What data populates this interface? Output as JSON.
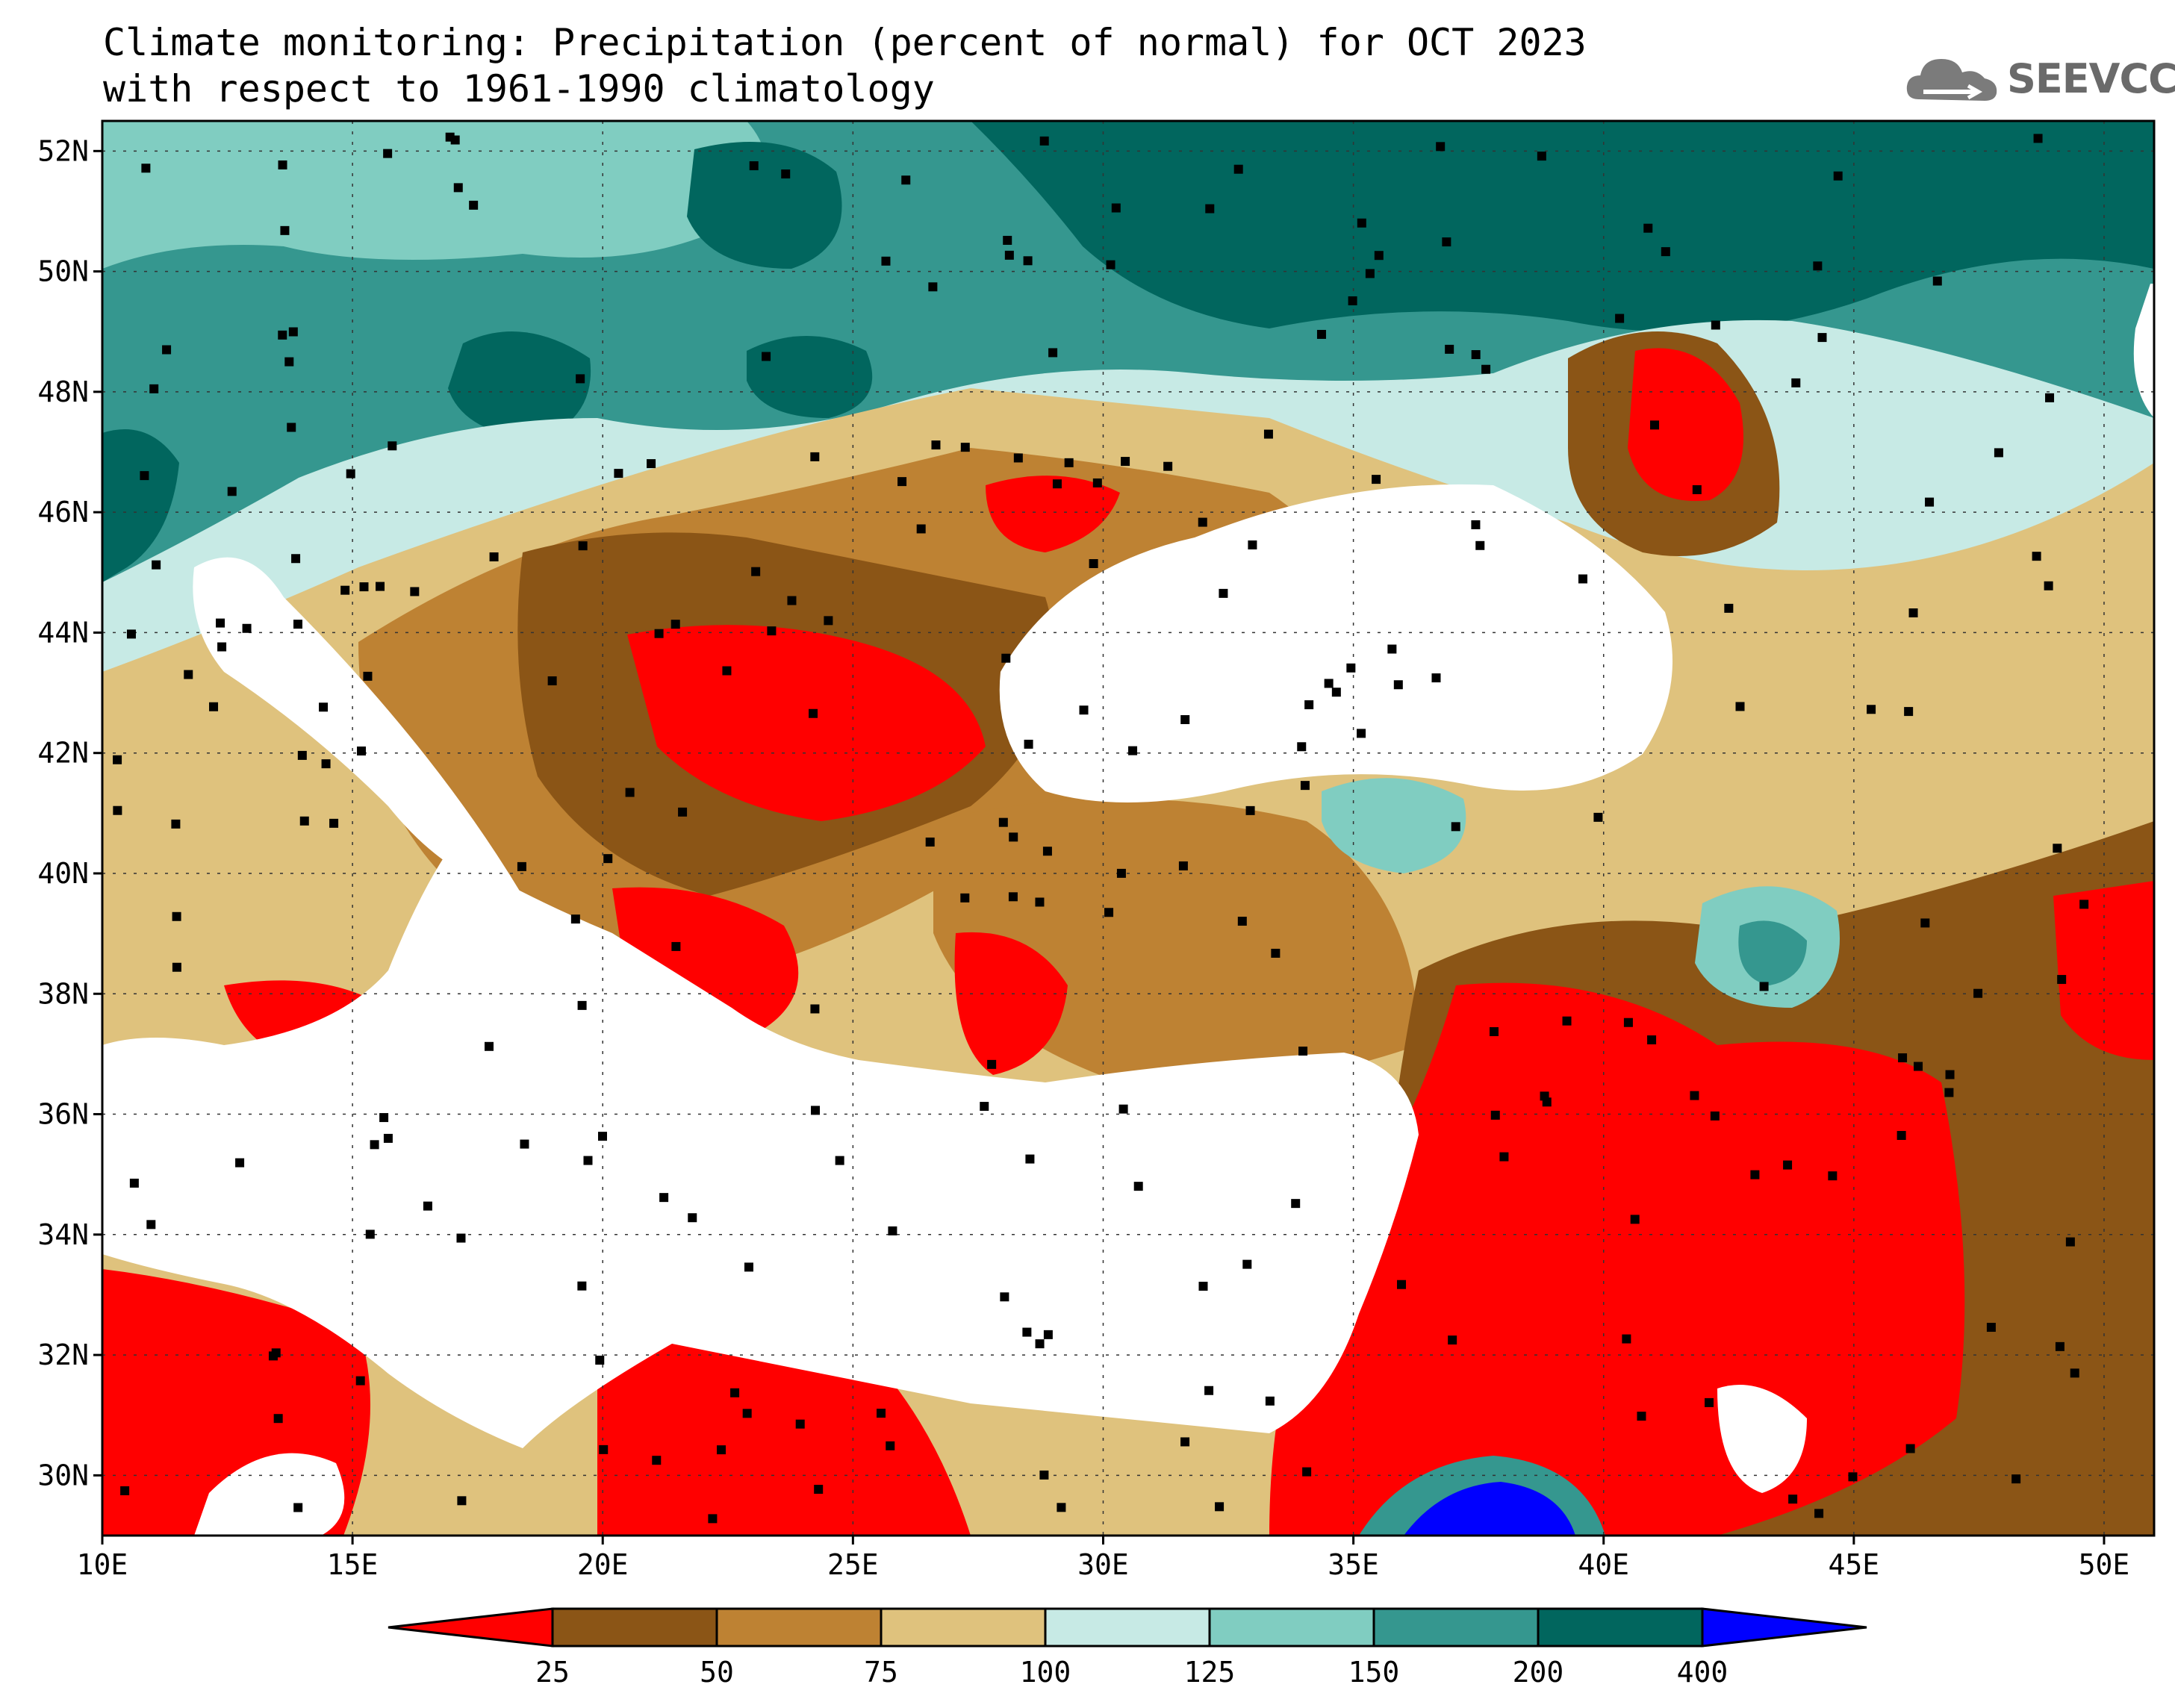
{
  "title": {
    "line1": "Climate monitoring: Precipitation (percent of normal) for OCT 2023",
    "line2": "with respect to 1961-1990 climatology"
  },
  "logo": {
    "icon": "cloud-icon",
    "text": "SEEVCCC"
  },
  "axes": {
    "y_labels": [
      "52N",
      "50N",
      "48N",
      "46N",
      "44N",
      "42N",
      "40N",
      "38N",
      "36N",
      "34N",
      "32N",
      "30N"
    ],
    "x_labels": [
      "10E",
      "15E",
      "20E",
      "25E",
      "30E",
      "35E",
      "40E",
      "45E",
      "50E"
    ]
  },
  "legend": {
    "colors": [
      "#ff0000",
      "#8b5516",
      "#be8233",
      "#dfc27d",
      "#c7eae5",
      "#80cdc1",
      "#35978f",
      "#01665e",
      "#0000ff"
    ],
    "labels": [
      "25",
      "50",
      "75",
      "100",
      "125",
      "150",
      "200",
      "400"
    ]
  }
}
